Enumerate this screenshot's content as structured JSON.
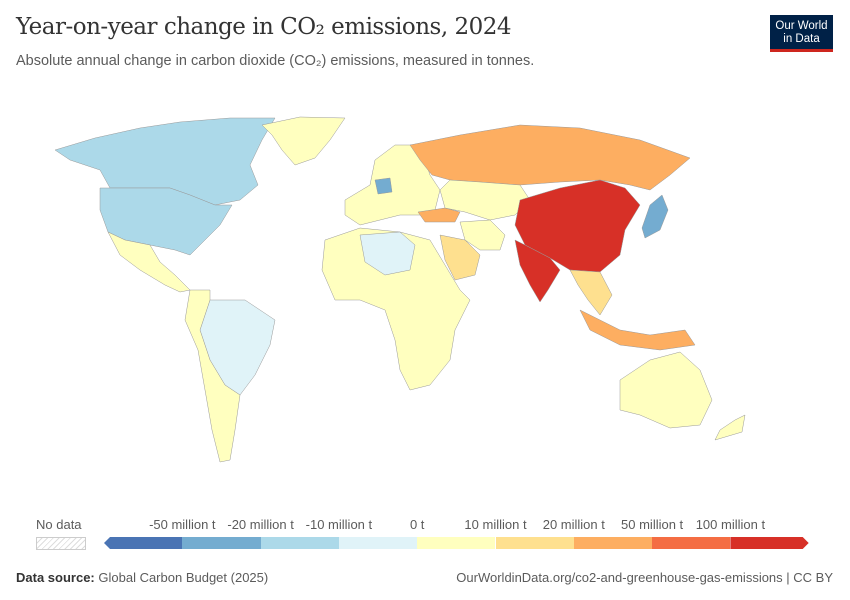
{
  "header": {
    "title": "Year-on-year change in CO₂ emissions, 2024",
    "subtitle": "Absolute annual change in carbon dioxide (CO₂) emissions, measured in tonnes.",
    "logo_line1": "Our World",
    "logo_line2": "in Data"
  },
  "legend": {
    "no_data_label": "No data",
    "bins": [
      {
        "color": "#4a74b4"
      },
      {
        "color": "#74acd0"
      },
      {
        "color": "#acd9e9"
      },
      {
        "color": "#e0f3f8"
      },
      {
        "color": "#ffffbf"
      },
      {
        "color": "#fee08f"
      },
      {
        "color": "#fdae61"
      },
      {
        "color": "#f46d43"
      },
      {
        "color": "#d73027"
      }
    ],
    "labels": [
      "-50 million t",
      "-20 million t",
      "-10 million t",
      "0 t",
      "10 million t",
      "20 million t",
      "50 million t",
      "100 million t"
    ]
  },
  "map_regions": [
    {
      "name": "Canada",
      "bin": 2
    },
    {
      "name": "United States",
      "bin": 2
    },
    {
      "name": "Greenland",
      "bin": 4
    },
    {
      "name": "Mexico and Central America",
      "bin": 4
    },
    {
      "name": "Brazil",
      "bin": 3
    },
    {
      "name": "South America west",
      "bin": 4
    },
    {
      "name": "Europe",
      "bin": 4
    },
    {
      "name": "Germany",
      "bin": 1
    },
    {
      "name": "Russia",
      "bin": 6
    },
    {
      "name": "Turkey",
      "bin": 6
    },
    {
      "name": "Kazakhstan and Central Asia",
      "bin": 4
    },
    {
      "name": "Iran",
      "bin": 4
    },
    {
      "name": "Saudi Arabia",
      "bin": 5
    },
    {
      "name": "Africa",
      "bin": 4
    },
    {
      "name": "Algeria and Libya",
      "bin": 3
    },
    {
      "name": "China",
      "bin": 8
    },
    {
      "name": "India",
      "bin": 8
    },
    {
      "name": "Japan",
      "bin": 1
    },
    {
      "name": "Southeast Asia",
      "bin": 5
    },
    {
      "name": "Indonesia",
      "bin": 6
    },
    {
      "name": "Australia",
      "bin": 4
    },
    {
      "name": "New Zealand",
      "bin": 4
    }
  ],
  "footer": {
    "source_label": "Data source:",
    "source": "Global Carbon Budget (2025)",
    "url": "OurWorldinData.org/co2-and-greenhouse-gas-emissions | CC BY"
  }
}
